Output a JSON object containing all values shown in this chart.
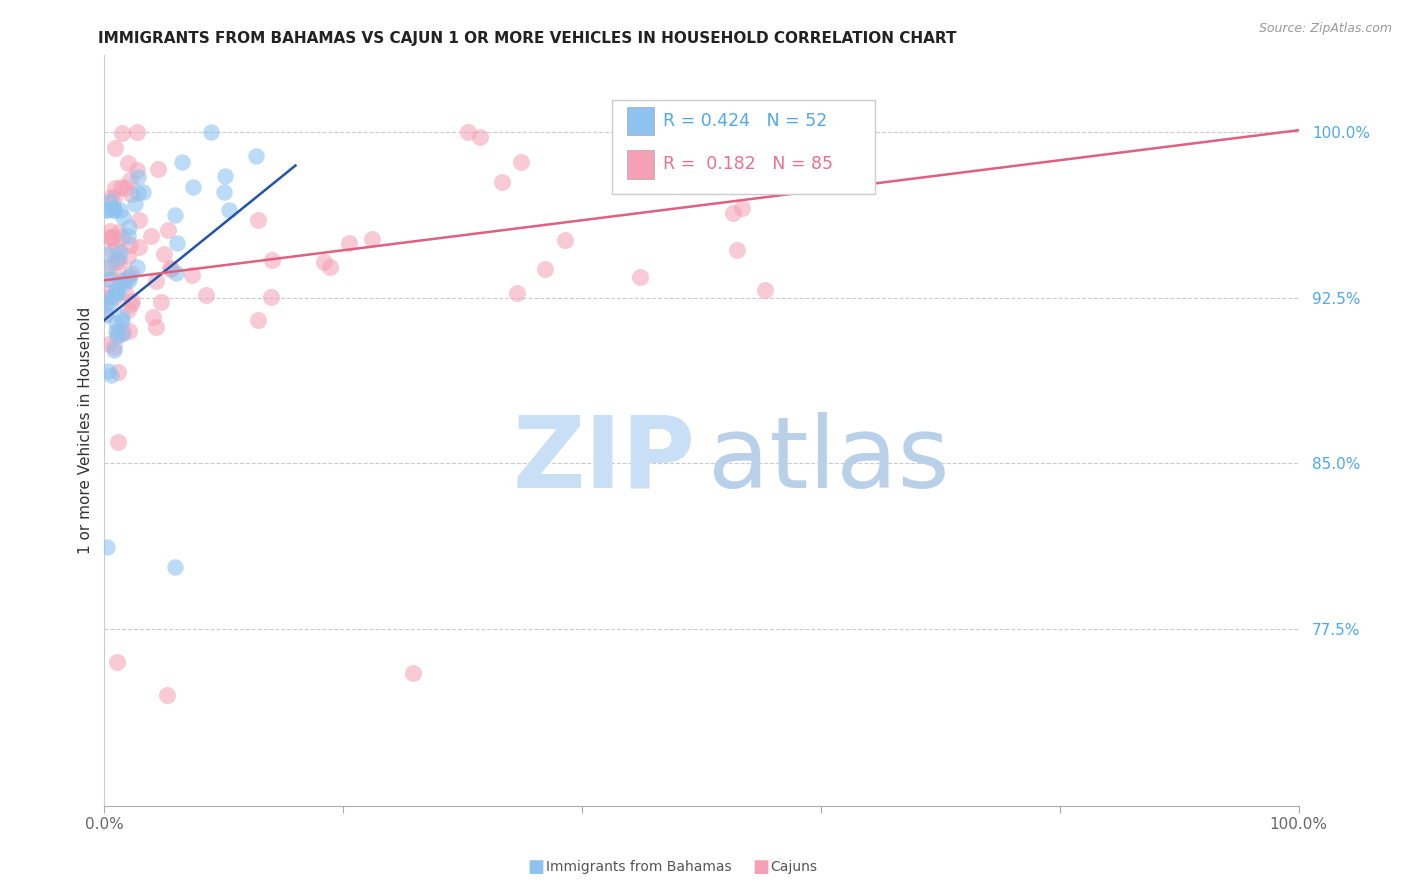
{
  "title": "IMMIGRANTS FROM BAHAMAS VS CAJUN 1 OR MORE VEHICLES IN HOUSEHOLD CORRELATION CHART",
  "source": "Source: ZipAtlas.com",
  "ylabel": "1 or more Vehicles in Household",
  "xlim": [
    0.0,
    1.0
  ],
  "ylim": [
    0.695,
    1.035
  ],
  "xticks": [
    0.0,
    0.2,
    0.4,
    0.6,
    0.8,
    1.0
  ],
  "xticklabels": [
    "0.0%",
    "",
    "",
    "",
    "",
    "100.0%"
  ],
  "ytick_positions": [
    0.775,
    0.85,
    0.925,
    1.0
  ],
  "yticklabels": [
    "77.5%",
    "85.0%",
    "92.5%",
    "100.0%"
  ],
  "ytick_color": "#4fa8e8",
  "color_blue": "#8ec3f0",
  "color_pink": "#f4a0b5",
  "line_blue": "#2255aa",
  "line_pink": "#e06080",
  "watermark_zip_color": "#c8dff5",
  "watermark_atlas_color": "#b8d0e8",
  "pink_line_x0": 0.0,
  "pink_line_y0": 0.933,
  "pink_line_x1": 1.0,
  "pink_line_y1": 1.001,
  "blue_line_x0": 0.0,
  "blue_line_y0": 0.915,
  "blue_line_x1": 0.16,
  "blue_line_y1": 0.985
}
